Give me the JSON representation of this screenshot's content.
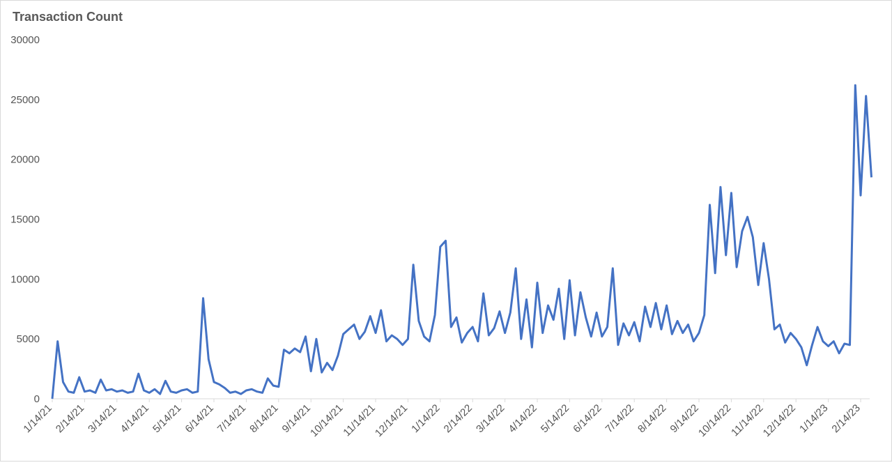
{
  "chart_data": {
    "type": "line",
    "title": "Transaction Count",
    "categories": [
      "1/14/21",
      null,
      null,
      null,
      null,
      null,
      "2/14/21",
      null,
      null,
      null,
      null,
      null,
      "3/14/21",
      null,
      null,
      null,
      null,
      null,
      "4/14/21",
      null,
      null,
      null,
      null,
      null,
      "5/14/21",
      null,
      null,
      null,
      null,
      null,
      "6/14/21",
      null,
      null,
      null,
      null,
      null,
      "7/14/21",
      null,
      null,
      null,
      null,
      null,
      "8/14/21",
      null,
      null,
      null,
      null,
      null,
      "9/14/21",
      null,
      null,
      null,
      null,
      null,
      "10/14/21",
      null,
      null,
      null,
      null,
      null,
      "11/14/21",
      null,
      null,
      null,
      null,
      null,
      "12/14/21",
      null,
      null,
      null,
      null,
      null,
      "1/14/22",
      null,
      null,
      null,
      null,
      null,
      "2/14/22",
      null,
      null,
      null,
      null,
      null,
      "3/14/22",
      null,
      null,
      null,
      null,
      null,
      "4/14/22",
      null,
      null,
      null,
      null,
      null,
      "5/14/22",
      null,
      null,
      null,
      null,
      null,
      "6/14/22",
      null,
      null,
      null,
      null,
      null,
      "7/14/22",
      null,
      null,
      null,
      null,
      null,
      "8/14/22",
      null,
      null,
      null,
      null,
      null,
      "9/14/22",
      null,
      null,
      null,
      null,
      null,
      "10/14/22",
      null,
      null,
      null,
      null,
      null,
      "11/14/22",
      null,
      null,
      null,
      null,
      null,
      "12/14/22",
      null,
      null,
      null,
      null,
      null,
      "1/14/23",
      null,
      null,
      null,
      null,
      null,
      "2/14/23",
      null,
      null
    ],
    "series": [
      {
        "name": "Transaction Count",
        "color": "#4472c4",
        "values": [
          0,
          4800,
          1400,
          600,
          500,
          1800,
          600,
          700,
          500,
          1600,
          700,
          800,
          600,
          700,
          500,
          600,
          2100,
          700,
          500,
          800,
          400,
          1500,
          600,
          500,
          700,
          800,
          500,
          600,
          8400,
          3300,
          1400,
          1200,
          900,
          500,
          600,
          400,
          700,
          800,
          600,
          500,
          1700,
          1100,
          1000,
          4100,
          3800,
          4200,
          3900,
          5200,
          2300,
          5000,
          2200,
          3000,
          2400,
          3600,
          5400,
          5800,
          6200,
          5000,
          5600,
          6900,
          5500,
          7400,
          4800,
          5300,
          5000,
          4500,
          5000,
          11200,
          6500,
          5200,
          4800,
          7000,
          12700,
          13200,
          6000,
          6800,
          4700,
          5500,
          6000,
          4800,
          8800,
          5300,
          5900,
          7300,
          5500,
          7200,
          10900,
          5000,
          8300,
          4300,
          9700,
          5500,
          7800,
          6600,
          9200,
          5000,
          9900,
          5300,
          8900,
          6800,
          5200,
          7200,
          5200,
          6000,
          10900,
          4500,
          6300,
          5300,
          6400,
          4800,
          7700,
          6000,
          8000,
          5800,
          7800,
          5400,
          6500,
          5500,
          6200,
          4800,
          5500,
          7000,
          16200,
          10500,
          17700,
          12000,
          17200,
          11000,
          14000,
          15200,
          13500,
          9500,
          13000,
          10000,
          5800,
          6200,
          4700,
          5500,
          5000,
          4300,
          2800,
          4500,
          6000,
          4800,
          4400,
          4800,
          3800,
          4600,
          4500,
          26200,
          17000,
          25300,
          18500
        ]
      }
    ],
    "ylim": [
      0,
      30000
    ],
    "yticks": [
      0,
      5000,
      10000,
      15000,
      20000,
      25000,
      30000
    ]
  }
}
